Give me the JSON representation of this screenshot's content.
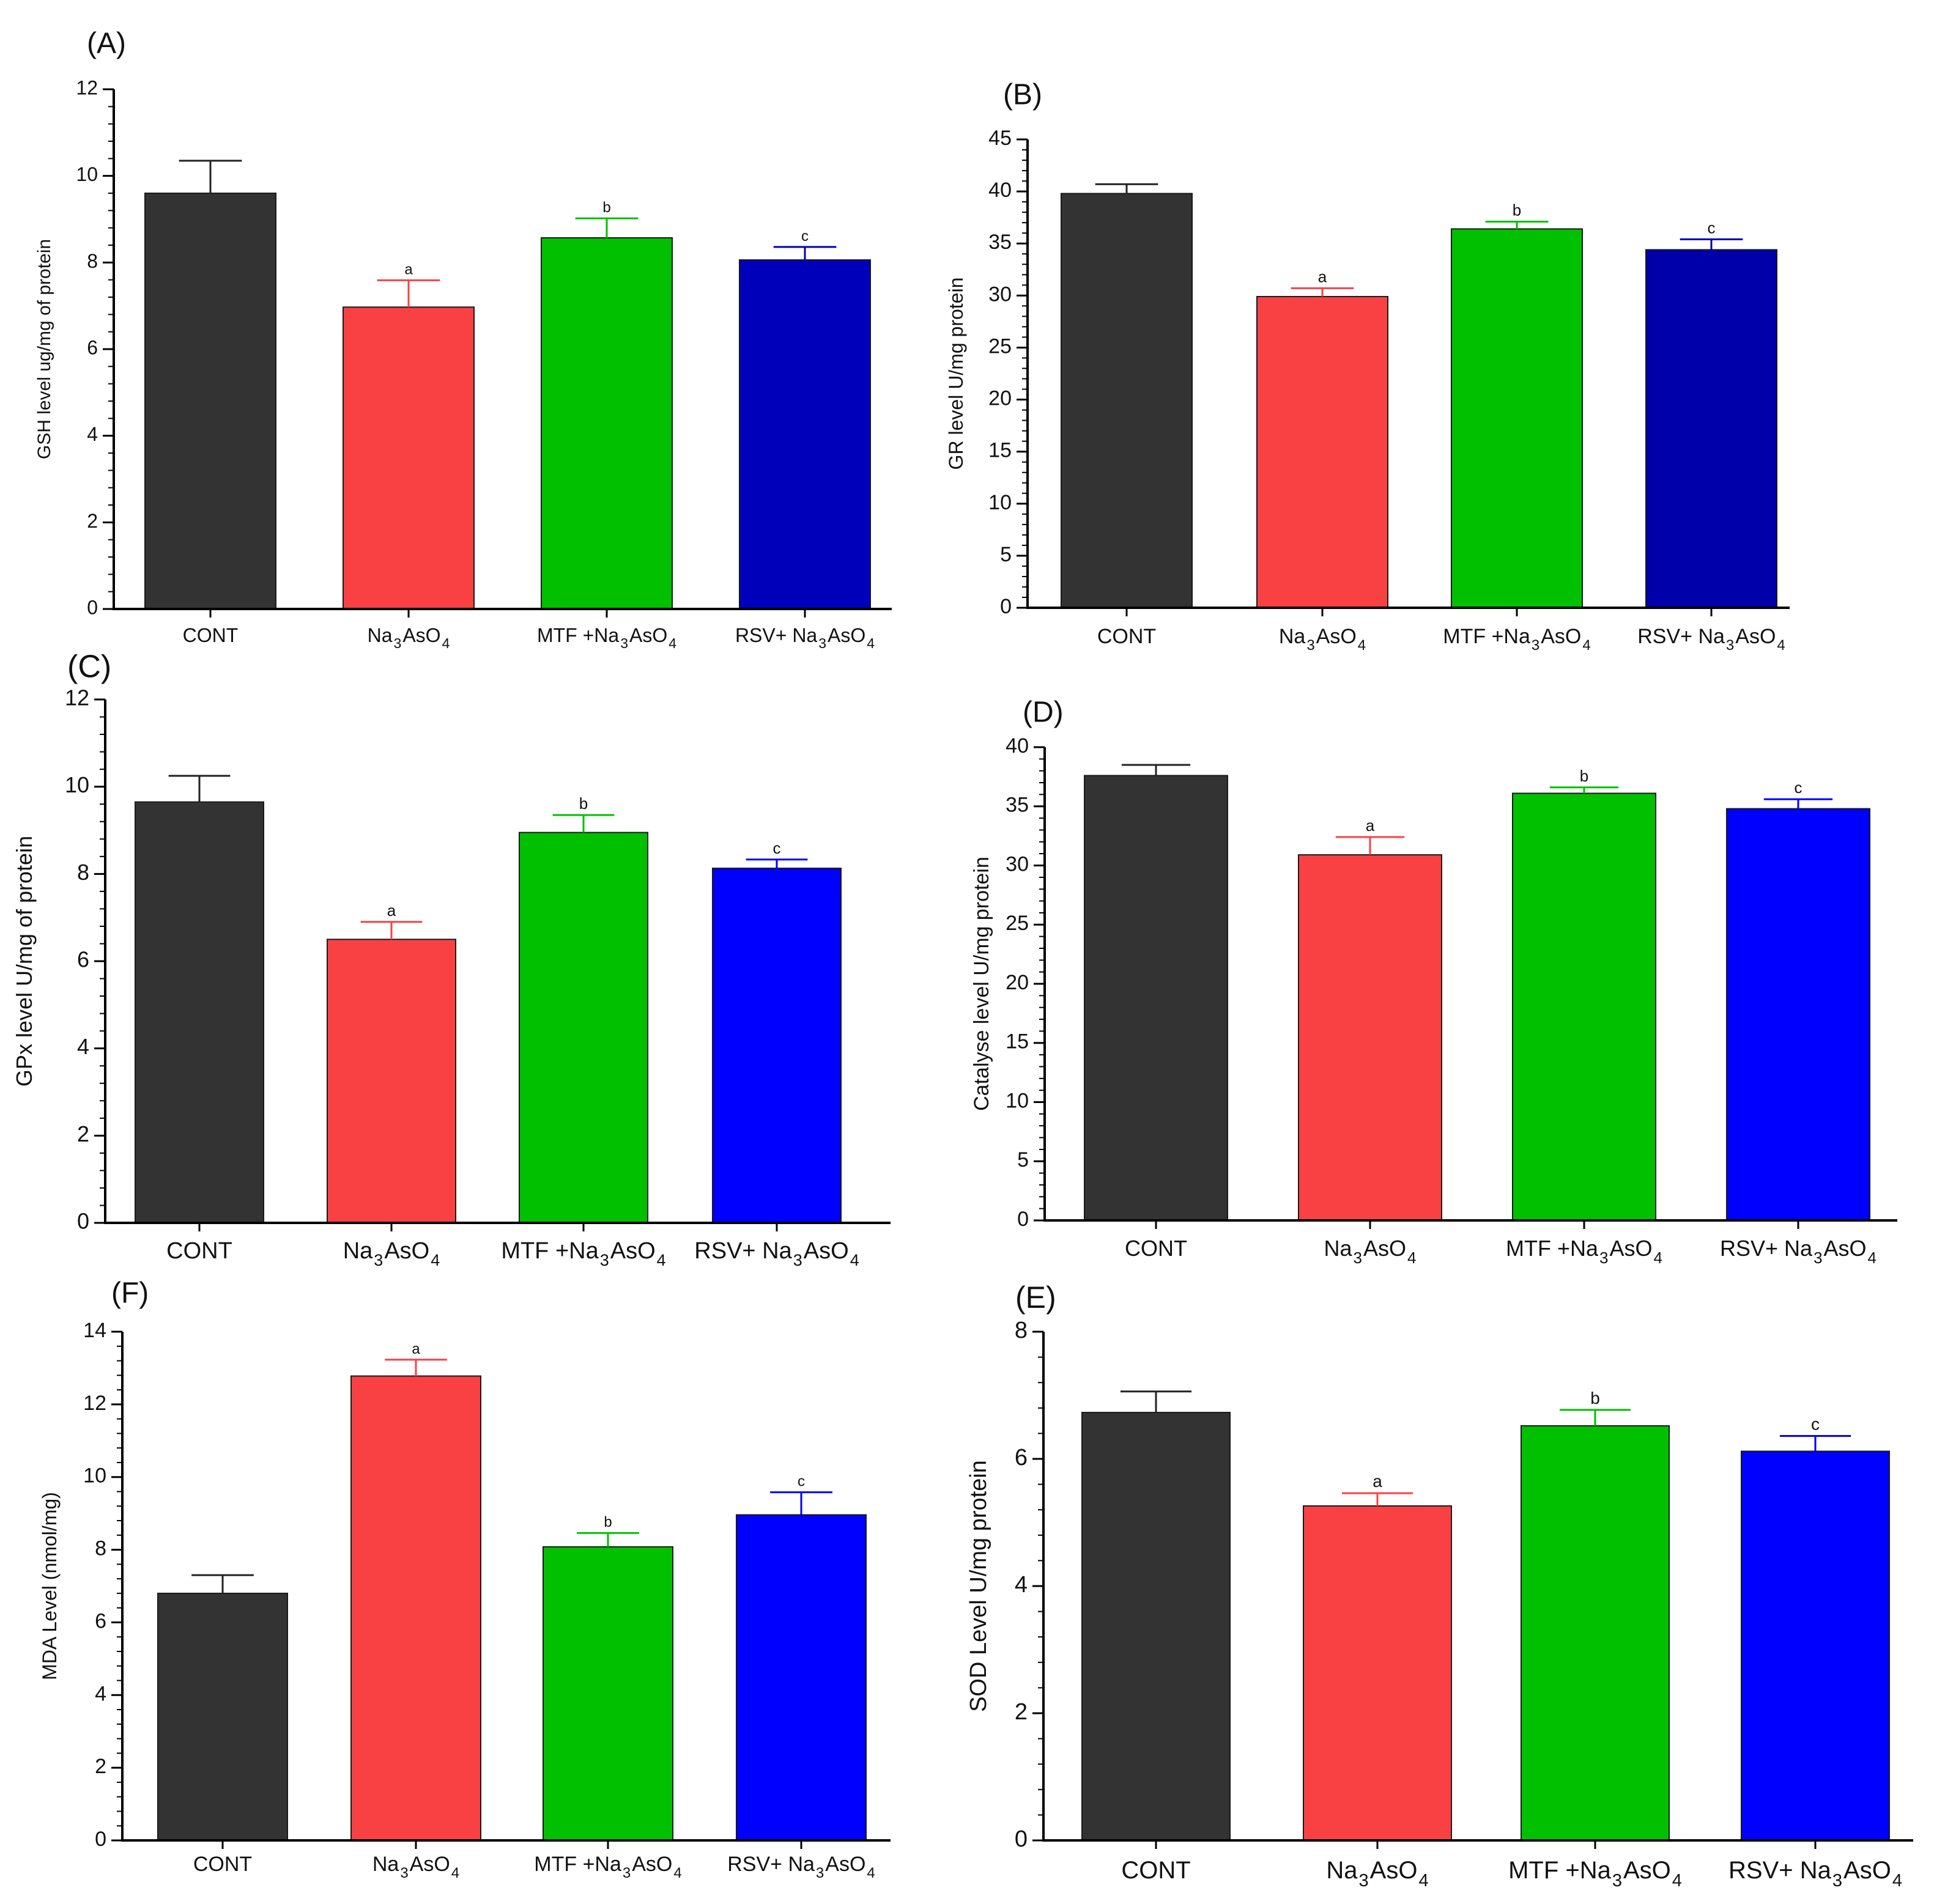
{
  "panel_labels": [
    "(A)",
    "(B)",
    "(C)",
    "(D)",
    "(F)",
    "(E)"
  ],
  "colors": {
    "CONT": "#333333",
    "Na3AsO4": "#f94144",
    "MTF": "#00c000",
    "RSV_A": "#0000bb",
    "RSV_B": "#0000aa",
    "RSV_C": "#0000ff",
    "axis": "#000000"
  },
  "chart_data": [
    {
      "panel": "(A)",
      "type": "bar",
      "categories": [
        "CONT",
        "Na3AsO4",
        "MTF +Na3AsO4",
        "RSV+ Na3AsO4"
      ],
      "values": [
        9.6,
        6.97,
        8.57,
        8.06
      ],
      "errors": [
        0.75,
        0.62,
        0.45,
        0.3
      ],
      "significance": [
        "",
        "a",
        "b",
        "c"
      ],
      "ylabel": "GSH level ug/mg of protein",
      "ylim": [
        0,
        12
      ],
      "yticks": [
        0,
        2,
        4,
        6,
        8,
        10,
        12
      ]
    },
    {
      "panel": "(B)",
      "type": "bar",
      "categories": [
        "CONT",
        "Na3AsO4",
        "MTF +Na3AsO4",
        "RSV+ Na3AsO4"
      ],
      "values": [
        39.8,
        29.9,
        36.4,
        34.4
      ],
      "errors": [
        0.9,
        0.8,
        0.7,
        1.0
      ],
      "significance": [
        "",
        "a",
        "b",
        "c"
      ],
      "ylabel": "GR level U/mg protein",
      "ylim": [
        0,
        45
      ],
      "yticks": [
        0,
        5,
        10,
        15,
        20,
        25,
        30,
        35,
        40,
        45
      ]
    },
    {
      "panel": "(C)",
      "type": "bar",
      "categories": [
        "CONT",
        "Na3AsO4",
        "MTF +Na3AsO4",
        "RSV+ Na3AsO4"
      ],
      "values": [
        9.65,
        6.5,
        8.95,
        8.13
      ],
      "errors": [
        0.6,
        0.4,
        0.4,
        0.2
      ],
      "significance": [
        "",
        "a",
        "b",
        "c"
      ],
      "ylabel": "GPx level U/mg of protein",
      "ylim": [
        0,
        12
      ],
      "yticks": [
        0,
        2,
        4,
        6,
        8,
        10,
        12
      ]
    },
    {
      "panel": "(D)",
      "type": "bar",
      "categories": [
        "CONT",
        "Na3AsO4",
        "MTF +Na3AsO4",
        "RSV+ Na3AsO4"
      ],
      "values": [
        37.6,
        30.9,
        36.1,
        34.8
      ],
      "errors": [
        0.9,
        1.5,
        0.5,
        0.8
      ],
      "significance": [
        "",
        "a",
        "b",
        "c"
      ],
      "ylabel": "Catalyse level U/mg protein",
      "ylim": [
        0,
        40
      ],
      "yticks": [
        0,
        5,
        10,
        15,
        20,
        25,
        30,
        35,
        40
      ]
    },
    {
      "panel": "(F)",
      "type": "bar",
      "categories": [
        "CONT",
        "Na3AsO4",
        "MTF +Na3AsO4",
        "RSV+ Na3AsO4"
      ],
      "values": [
        6.8,
        12.78,
        8.08,
        8.96
      ],
      "errors": [
        0.5,
        0.45,
        0.38,
        0.62
      ],
      "significance": [
        "",
        "a",
        "b",
        "c"
      ],
      "ylabel": "MDA Level (nmol/mg)",
      "ylim": [
        0,
        14
      ],
      "yticks": [
        0,
        2,
        4,
        6,
        8,
        10,
        12,
        14
      ]
    },
    {
      "panel": "(E)",
      "type": "bar",
      "categories": [
        "CONT",
        "Na3AsO4",
        "MTF +Na3AsO4",
        "RSV+ Na3AsO4"
      ],
      "values": [
        6.73,
        5.26,
        6.52,
        6.12
      ],
      "errors": [
        0.33,
        0.2,
        0.25,
        0.24
      ],
      "significance": [
        "",
        "a",
        "b",
        "c"
      ],
      "ylabel": "SOD Level U/mg protein",
      "ylim": [
        0,
        8
      ],
      "yticks": [
        0,
        2,
        4,
        6,
        8
      ]
    }
  ]
}
